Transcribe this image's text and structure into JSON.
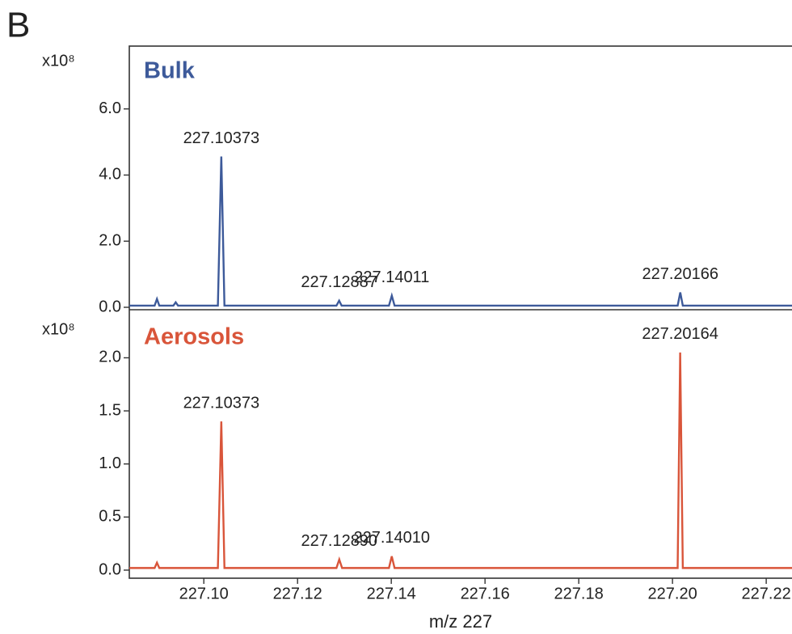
{
  "panel_label": "B",
  "chart_data": [
    {
      "type": "line",
      "ylabel": "x10⁸",
      "xlim": [
        227.0841,
        227.2255
      ],
      "ylim": [
        0,
        7.9
      ],
      "yticks": [
        {
          "value": 0,
          "label": "0.0"
        },
        {
          "value": 2,
          "label": "2.0"
        },
        {
          "value": 4,
          "label": "4.0"
        },
        {
          "value": 6,
          "label": "6.0"
        }
      ],
      "x": [
        227.0841,
        227.0895,
        227.09,
        227.0905,
        227.0935,
        227.094,
        227.0945,
        227.103,
        227.10373,
        227.1044,
        227.1283,
        227.12887,
        227.1294,
        227.1395,
        227.14011,
        227.1407,
        227.2011,
        227.20166,
        227.2022,
        227.2255
      ],
      "series": [
        {
          "name": "Bulk",
          "color": "#3d5a9a",
          "values": [
            0.05,
            0.05,
            0.25,
            0.05,
            0.05,
            0.15,
            0.05,
            0.05,
            4.56,
            0.05,
            0.05,
            0.2,
            0.05,
            0.05,
            0.35,
            0.05,
            0.05,
            0.45,
            0.05,
            0.05
          ]
        }
      ],
      "annotations": [
        {
          "text": "227.10373",
          "x": 227.10373,
          "y": 4.56
        },
        {
          "text": "227.12887",
          "x": 227.12887,
          "y": 0.2
        },
        {
          "text": "227.14011",
          "x": 227.14011,
          "y": 0.35
        },
        {
          "text": "227.20166",
          "x": 227.20166,
          "y": 0.45
        }
      ]
    },
    {
      "type": "line",
      "ylabel": "x10⁸",
      "xlabel": "m/z 227",
      "xlim": [
        227.0841,
        227.2255
      ],
      "ylim": [
        0,
        2.43
      ],
      "xticks": [
        {
          "value": 227.1,
          "label": "227.10"
        },
        227.12,
        227.14,
        227.16,
        227.18,
        {
          "value": 227.2,
          "label": "227.20"
        },
        227.22
      ],
      "yticks": [
        {
          "value": 0,
          "label": "0.0"
        },
        {
          "value": 0.5,
          "label": "0.5"
        },
        {
          "value": 1,
          "label": "1.0"
        },
        {
          "value": 1.5,
          "label": "1.5"
        },
        {
          "value": 2,
          "label": "2.0"
        }
      ],
      "x": [
        227.0841,
        227.0895,
        227.09,
        227.0905,
        227.103,
        227.10373,
        227.1044,
        227.1283,
        227.1289,
        227.1295,
        227.1395,
        227.1401,
        227.1407,
        227.2011,
        227.20164,
        227.2022,
        227.2255
      ],
      "series": [
        {
          "name": "Aerosols",
          "color": "#d9553a",
          "values": [
            0.02,
            0.02,
            0.07,
            0.02,
            0.02,
            1.4,
            0.02,
            0.02,
            0.1,
            0.02,
            0.02,
            0.13,
            0.02,
            0.02,
            2.05,
            0.02,
            0.02
          ]
        }
      ],
      "annotations": [
        {
          "text": "227.10373",
          "x": 227.10373,
          "y": 1.4
        },
        {
          "text": "227.12890",
          "x": 227.1289,
          "y": 0.1
        },
        {
          "text": "227.14010",
          "x": 227.1401,
          "y": 0.13
        },
        {
          "text": "227.20164",
          "x": 227.20164,
          "y": 2.05
        }
      ]
    }
  ]
}
